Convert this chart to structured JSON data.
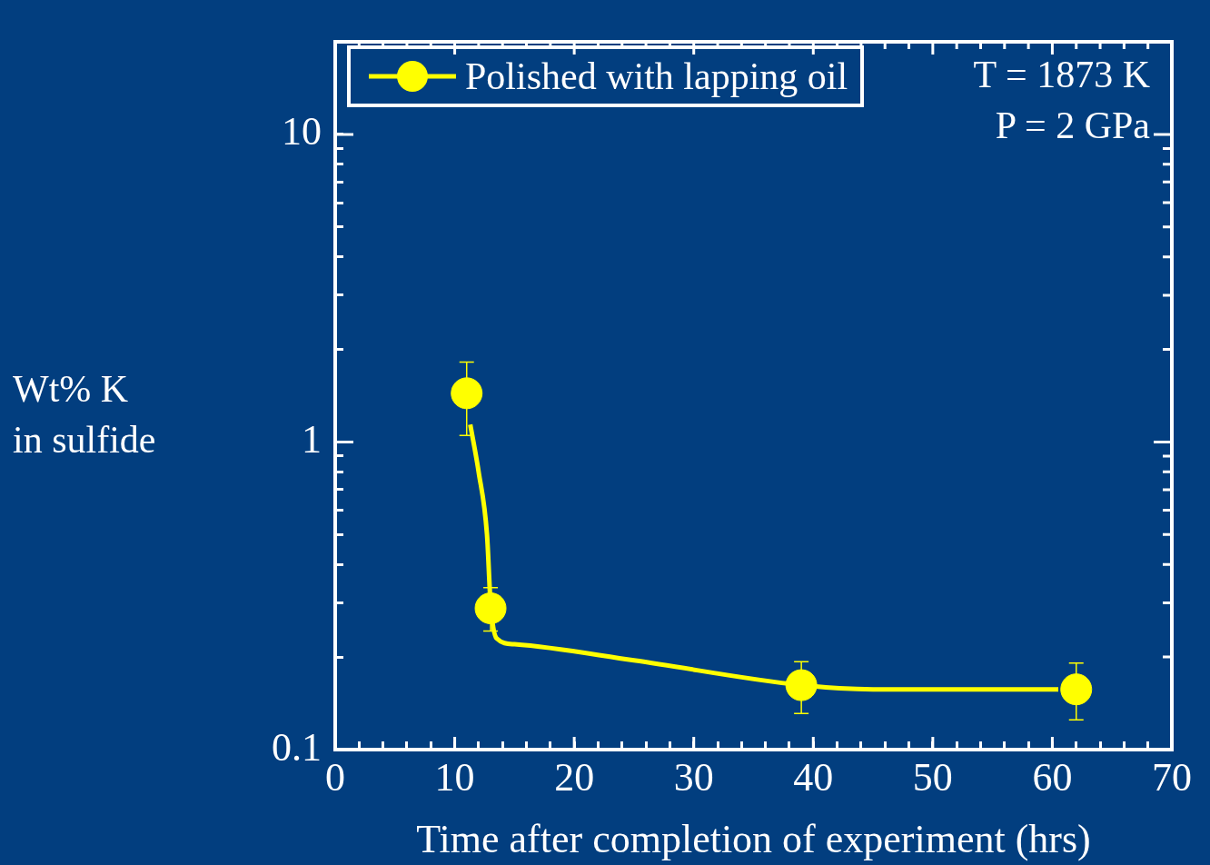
{
  "chart_data": {
    "type": "scatter",
    "xlabel": "Time after completion of experiment (hrs)",
    "ylabel": "Wt% K\nin sulfide",
    "annotations": [
      "T = 1873 K",
      "P = 2 GPa"
    ],
    "log": "y",
    "grid": false,
    "legend": "top left",
    "marker": "circle",
    "xlim": [
      0,
      70
    ],
    "ylim": [
      0.1,
      20
    ],
    "xticks": [
      0,
      {
        "value": 2,
        "label": null
      },
      {
        "value": 4,
        "label": null
      },
      {
        "value": 6,
        "label": null
      },
      {
        "value": 8,
        "label": null
      },
      10,
      {
        "value": 12,
        "label": null
      },
      {
        "value": 14,
        "label": null
      },
      {
        "value": 16,
        "label": null
      },
      {
        "value": 18,
        "label": null
      },
      20,
      {
        "value": 22,
        "label": null
      },
      {
        "value": 24,
        "label": null
      },
      {
        "value": 26,
        "label": null
      },
      {
        "value": 28,
        "label": null
      },
      30,
      {
        "value": 32,
        "label": null
      },
      {
        "value": 34,
        "label": null
      },
      {
        "value": 36,
        "label": null
      },
      {
        "value": 38,
        "label": null
      },
      40,
      {
        "value": 42,
        "label": null
      },
      {
        "value": 44,
        "label": null
      },
      {
        "value": 46,
        "label": null
      },
      {
        "value": 48,
        "label": null
      },
      50,
      {
        "value": 52,
        "label": null
      },
      {
        "value": 54,
        "label": null
      },
      {
        "value": 56,
        "label": null
      },
      {
        "value": 58,
        "label": null
      },
      60,
      {
        "value": 62,
        "label": null
      },
      {
        "value": 64,
        "label": null
      },
      {
        "value": 66,
        "label": null
      },
      {
        "value": 68,
        "label": null
      },
      70
    ],
    "yticks": [
      0.1,
      {
        "value": 0.2,
        "label": null
      },
      {
        "value": 0.3,
        "label": null
      },
      {
        "value": 0.4,
        "label": null
      },
      {
        "value": 0.5,
        "label": null
      },
      {
        "value": 0.6,
        "label": null
      },
      {
        "value": 0.7,
        "label": null
      },
      {
        "value": 0.8,
        "label": null
      },
      {
        "value": 0.9,
        "label": null
      },
      1,
      {
        "value": 2,
        "label": null
      },
      {
        "value": 3,
        "label": null
      },
      {
        "value": 4,
        "label": null
      },
      {
        "value": 5,
        "label": null
      },
      {
        "value": 6,
        "label": null
      },
      {
        "value": 7,
        "label": null
      },
      {
        "value": 8,
        "label": null
      },
      {
        "value": 9,
        "label": null
      },
      10
    ],
    "series": [
      {
        "type": "line",
        "color": "#ffff00",
        "x": [
          11.3,
          12,
          12.7,
          13,
          13.5,
          15,
          25,
          39,
          45,
          60.5
        ],
        "values": [
          1.14,
          0.8,
          0.5,
          0.3,
          0.23,
          0.22,
          0.195,
          0.162,
          0.157,
          0.157
        ],
        "marker": "none"
      },
      {
        "name": "Polished with lapping oil",
        "color": "#ffff00",
        "x": [
          11,
          13,
          39,
          62
        ],
        "values": [
          1.44,
          0.288,
          0.162,
          0.157
        ],
        "errors": [
          [
            1.05,
            1.82
          ],
          [
            0.243,
            0.336
          ],
          [
            0.131,
            0.193
          ],
          [
            0.125,
            0.191
          ]
        ]
      }
    ]
  }
}
